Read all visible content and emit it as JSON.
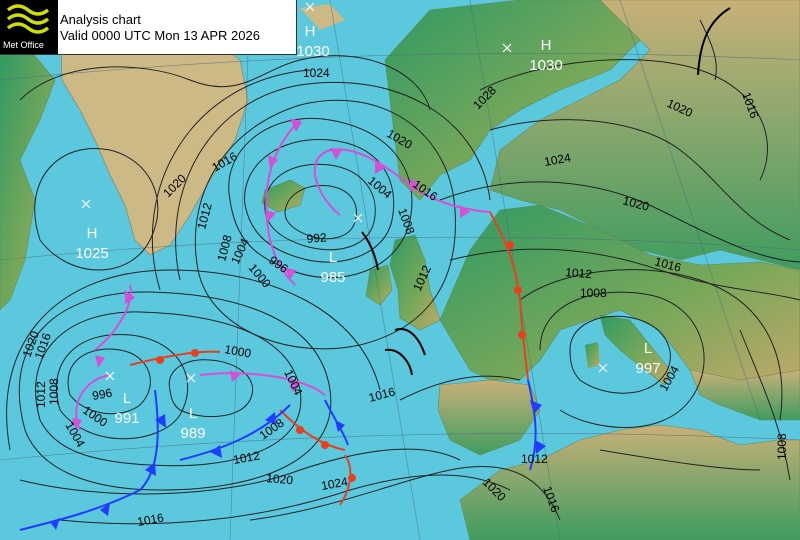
{
  "header": {
    "logo_text": "Met Office",
    "title": "Analysis chart",
    "valid": "Valid 0000 UTC Mon 13 APR 2026"
  },
  "colors": {
    "sea": "#5bc8de",
    "land_low": "#3fa06a",
    "land_high": "#d8c78a",
    "ice": "#cbb98a",
    "isobar": "#222222",
    "cold_front": "#1f3cff",
    "warm_front": "#e8401c",
    "occluded_front": "#d64fd6"
  },
  "pressure_centres": [
    {
      "id": "h-greenland",
      "type": "H",
      "value": "1025"
    },
    {
      "id": "h-nw",
      "type": "H",
      "value": "1030"
    },
    {
      "id": "h-scandinavia",
      "type": "H",
      "value": "1030"
    },
    {
      "id": "l-iceland",
      "type": "L",
      "value": "985"
    },
    {
      "id": "l-atlantic-west",
      "type": "L",
      "value": "991"
    },
    {
      "id": "l-atlantic-east",
      "type": "L",
      "value": "989"
    },
    {
      "id": "l-mediterranean",
      "type": "L",
      "value": "997"
    }
  ],
  "isobar_labels": [
    {
      "id": "iso-1024-n",
      "value": "1024"
    },
    {
      "id": "iso-1028",
      "value": "1028"
    },
    {
      "id": "iso-1020-scand",
      "value": "1020"
    },
    {
      "id": "iso-1024-nsea",
      "value": "1024"
    },
    {
      "id": "iso-1020-green",
      "value": "1020"
    },
    {
      "id": "iso-1016-green",
      "value": "1016"
    },
    {
      "id": "iso-1012-a",
      "value": "1012"
    },
    {
      "id": "iso-1008-a",
      "value": "1008"
    },
    {
      "id": "iso-1004-a",
      "value": "1004"
    },
    {
      "id": "iso-1000-a",
      "value": "1000"
    },
    {
      "id": "iso-996-a",
      "value": "996"
    },
    {
      "id": "iso-992-a",
      "value": "992"
    },
    {
      "id": "iso-1004-b",
      "value": "1004"
    },
    {
      "id": "iso-1016-b",
      "value": "1016"
    },
    {
      "id": "iso-1008-b",
      "value": "1008"
    },
    {
      "id": "iso-1012-b",
      "value": "1012"
    },
    {
      "id": "iso-1020-ne",
      "value": "1020"
    },
    {
      "id": "iso-1016-ne",
      "value": "1016"
    },
    {
      "id": "iso-1020-e",
      "value": "1020"
    },
    {
      "id": "iso-1016-e",
      "value": "1016"
    },
    {
      "id": "iso-1012-e",
      "value": "1012"
    },
    {
      "id": "iso-1008-e",
      "value": "1008"
    },
    {
      "id": "iso-1004-med",
      "value": "1004"
    },
    {
      "id": "iso-1008-se",
      "value": "1008"
    },
    {
      "id": "iso-1020-w1",
      "value": "1020"
    },
    {
      "id": "iso-1016-w1",
      "value": "1016"
    },
    {
      "id": "iso-1012-w1",
      "value": "1012"
    },
    {
      "id": "iso-1008-w1",
      "value": "1008"
    },
    {
      "id": "iso-1004-w1",
      "value": "1004"
    },
    {
      "id": "iso-1000-w1",
      "value": "1000"
    },
    {
      "id": "iso-996-w1",
      "value": "996"
    },
    {
      "id": "iso-1000-mid",
      "value": "1000"
    },
    {
      "id": "iso-1004-mid",
      "value": "1004"
    },
    {
      "id": "iso-1008-mid",
      "value": "1008"
    },
    {
      "id": "iso-1012-mid",
      "value": "1012"
    },
    {
      "id": "iso-1016-mid",
      "value": "1016"
    },
    {
      "id": "iso-1020-s",
      "value": "1020"
    },
    {
      "id": "iso-1024-s",
      "value": "1024"
    },
    {
      "id": "iso-1016-s",
      "value": "1016"
    },
    {
      "id": "iso-1012-s",
      "value": "1012"
    },
    {
      "id": "iso-1020-sw",
      "value": "1020"
    },
    {
      "id": "iso-1016-sw",
      "value": "1016"
    }
  ]
}
